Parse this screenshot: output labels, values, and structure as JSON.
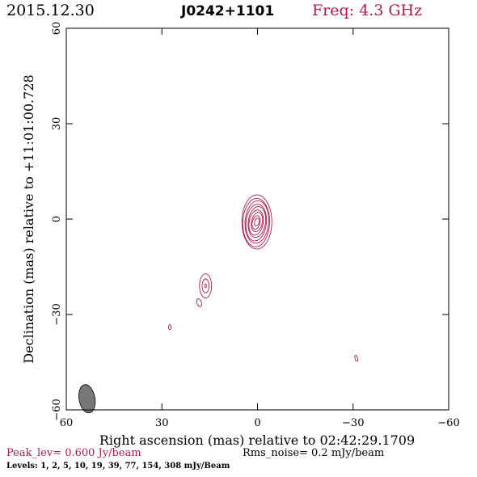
{
  "header": {
    "date": "2015.12.30",
    "source": "J0242+1101",
    "freq": "Freq: 4.3 GHz"
  },
  "footer": {
    "peak": "Peak_lev=  0.600 Jy/beam",
    "rms": "Rms_noise=  0.2 mJy/beam",
    "levels": "Levels:   1,   2,   5,  10,  19,  39,  77, 154, 308 mJy/Beam"
  },
  "colors": {
    "contour": "#b0194b",
    "frame": "#000000",
    "beam": "#777777"
  },
  "chart_data": {
    "type": "contour",
    "xlabel": "Right ascension (mas) relative to 02:42:29.1709",
    "ylabel": "Declination (mas) relative to +11:01:00.728",
    "xlim": [
      60,
      -60
    ],
    "ylim": [
      -60,
      60
    ],
    "xticks": [
      60,
      30,
      0,
      -30,
      -60
    ],
    "yticks": [
      -60,
      -30,
      0,
      30,
      60
    ],
    "xtick_labels": [
      "60",
      "30",
      "0",
      "−30",
      "−60"
    ],
    "ytick_labels": [
      "−60",
      "−30",
      "0",
      "30",
      "60"
    ],
    "levels_mJy": [
      1,
      2,
      5,
      10,
      19,
      39,
      77,
      154,
      308
    ],
    "components": [
      {
        "x": 0.3,
        "y": -1.0,
        "max_rx": 4.7,
        "max_ry": 8.5,
        "n_contours": 9,
        "angle": 0
      },
      {
        "x": 16.3,
        "y": -21.0,
        "max_rx": 1.9,
        "max_ry": 3.8,
        "n_contours": 3,
        "angle": 0
      },
      {
        "x": 18.3,
        "y": -26.3,
        "max_rx": 0.7,
        "max_ry": 1.3,
        "n_contours": 1,
        "angle": -20
      },
      {
        "x": 27.5,
        "y": -34.0,
        "max_rx": 0.4,
        "max_ry": 0.8,
        "n_contours": 1,
        "angle": 0
      },
      {
        "x": -31.0,
        "y": -43.8,
        "max_rx": 0.4,
        "max_ry": 1.0,
        "n_contours": 1,
        "angle": -15
      }
    ],
    "beam": {
      "x": 53.5,
      "y": -56.5,
      "major": 4.5,
      "minor": 2.5,
      "angle": -10
    }
  }
}
